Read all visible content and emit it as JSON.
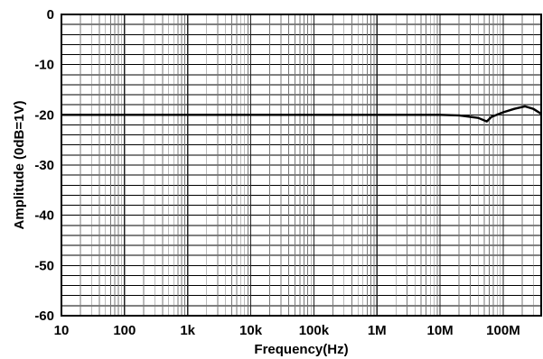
{
  "chart_data": {
    "type": "line",
    "title": "",
    "xlabel": "Frequency(Hz)",
    "ylabel": "Amplitude (0dB=1V)",
    "x_scale": "log",
    "xlim": [
      10,
      400000000
    ],
    "ylim": [
      -60,
      0
    ],
    "grid": true,
    "x_tick_values": [
      10,
      100,
      1000,
      10000,
      100000,
      1000000,
      10000000,
      100000000
    ],
    "x_tick_labels": [
      "10",
      "100",
      "1k",
      "10k",
      "100k",
      "1M",
      "10M",
      "100M"
    ],
    "y_tick_values": [
      0,
      -10,
      -20,
      -30,
      -40,
      -50,
      -60
    ],
    "y_tick_labels": [
      "0",
      "-10",
      "-20",
      "-30",
      "-40",
      "-50",
      "-60"
    ],
    "series": [
      {
        "color": "#000000",
        "points": [
          [
            10,
            -20.0
          ],
          [
            1000000,
            -20.0
          ],
          [
            10000000,
            -20.0
          ],
          [
            20000000,
            -20.1
          ],
          [
            40000000,
            -20.6
          ],
          [
            55000000,
            -21.3
          ],
          [
            65000000,
            -20.4
          ],
          [
            100000000,
            -19.5
          ],
          [
            150000000,
            -18.8
          ],
          [
            220000000,
            -18.3
          ],
          [
            300000000,
            -18.8
          ],
          [
            400000000,
            -19.8
          ]
        ]
      }
    ]
  }
}
